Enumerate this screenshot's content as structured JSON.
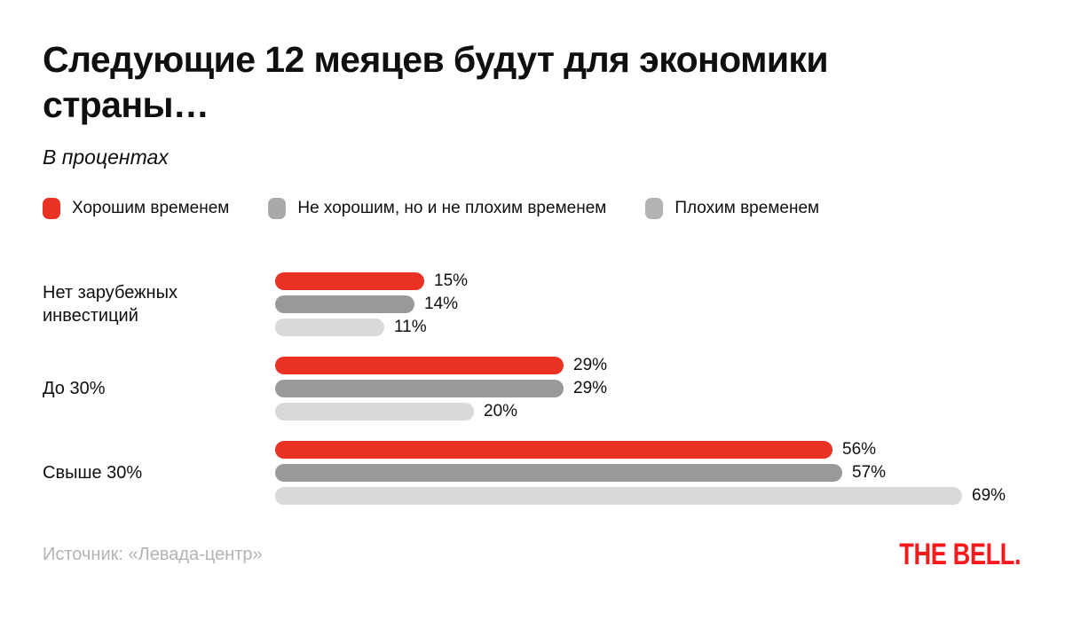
{
  "header": {
    "title_lines": [
      "Следующие 12 меяцев будут для экономики",
      "страны…"
    ],
    "subtitle": "В процентах"
  },
  "legend": [
    {
      "label": "Хорошим временем",
      "color": "#e93223"
    },
    {
      "label": "Не хорошим, но и не плохим временем",
      "color": "#a9a9a9"
    },
    {
      "label": "Плохим временем",
      "color": "#b3b3b3"
    }
  ],
  "chart_data": {
    "type": "bar",
    "orientation": "horizontal",
    "unit": "%",
    "xlim": [
      0,
      69
    ],
    "grid": false,
    "legend_position": "top",
    "categories": [
      "Нет зарубежных инвестиций",
      "До 30%",
      "Свыше 30%"
    ],
    "series": [
      {
        "name": "Хорошим временем",
        "color": "#e93223",
        "values": [
          15,
          29,
          56
        ]
      },
      {
        "name": "Не хорошим, но и не плохим временем",
        "color": "#999999",
        "values": [
          14,
          29,
          57
        ]
      },
      {
        "name": "Плохим временем",
        "color": "#d9d9d9",
        "values": [
          11,
          20,
          69
        ]
      }
    ],
    "groups": [
      {
        "category": "Нет зарубежных инвестиций",
        "values": [
          15,
          14,
          11
        ],
        "labels": [
          "15%",
          "14%",
          "11%"
        ]
      },
      {
        "category": "До 30%",
        "values": [
          29,
          29,
          20
        ],
        "labels": [
          "29%",
          "29%",
          "20%"
        ]
      },
      {
        "category": "Свыше 30%",
        "values": [
          56,
          57,
          69
        ],
        "labels": [
          "56%",
          "57%",
          "69%"
        ]
      }
    ]
  },
  "footer": {
    "source": "Источник: «Левада-центр»",
    "logo": "THE BELL."
  }
}
